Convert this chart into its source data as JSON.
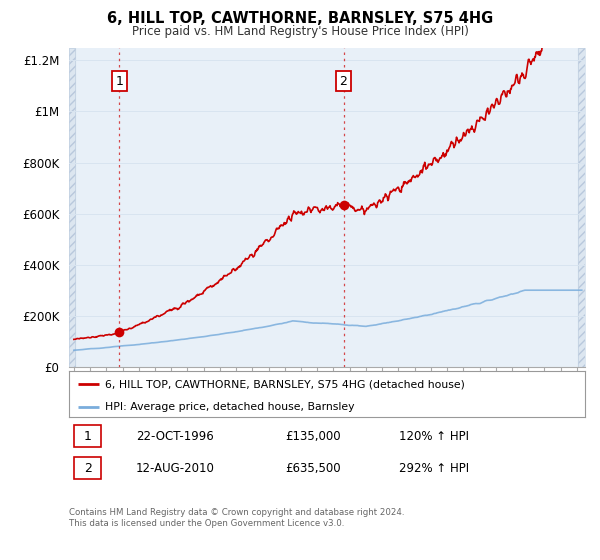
{
  "title": "6, HILL TOP, CAWTHORNE, BARNSLEY, S75 4HG",
  "subtitle": "Price paid vs. HM Land Registry's House Price Index (HPI)",
  "hpi_legend": "HPI: Average price, detached house, Barnsley",
  "property_legend": "6, HILL TOP, CAWTHORNE, BARNSLEY, S75 4HG (detached house)",
  "red_color": "#cc0000",
  "blue_color": "#7aaddc",
  "sale1_date": 1996.81,
  "sale1_price": 135000,
  "sale1_label": "22-OCT-1996",
  "sale1_pct": "120%",
  "sale2_date": 2010.62,
  "sale2_price": 635500,
  "sale2_label": "12-AUG-2010",
  "sale2_pct": "292%",
  "ylim_max": 1250000,
  "xlim_min": 1993.7,
  "xlim_max": 2025.5,
  "footer1": "Contains HM Land Registry data © Crown copyright and database right 2024.",
  "footer2": "This data is licensed under the Open Government Licence v3.0.",
  "hatch_color": "#dce6f0",
  "grid_color": "#d8e4f0",
  "bg_color": "#e8f0f8"
}
